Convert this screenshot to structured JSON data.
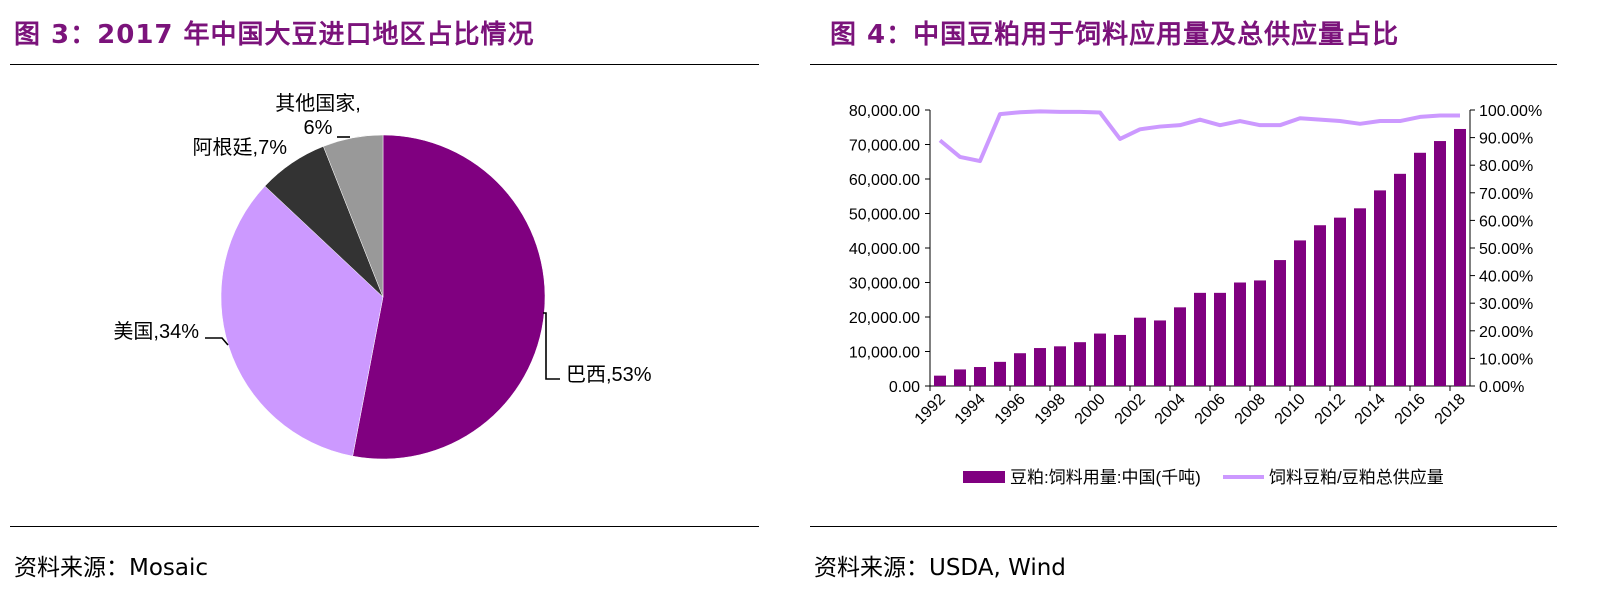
{
  "left": {
    "title": "图 3：2017 年中国大豆进口地区占比情况",
    "source": "资料来源：Mosaic"
  },
  "right": {
    "title": "图 4：中国豆粕用于饲料应用量及总供应量占比",
    "source": "资料来源：USDA, Wind"
  },
  "chart_data": [
    {
      "type": "pie",
      "title": "2017 年中国大豆进口地区占比情况",
      "slices": [
        {
          "label": "巴西,53%",
          "name": "巴西",
          "value": 53,
          "color": "#800080"
        },
        {
          "label": "美国,34%",
          "name": "美国",
          "value": 34,
          "color": "#cc99ff"
        },
        {
          "label": "阿根廷,7%",
          "name": "阿根廷",
          "value": 7,
          "color": "#333333"
        },
        {
          "label_lines": [
            "其他国家,",
            "6%"
          ],
          "name": "其他国家",
          "value": 6,
          "color": "#999999"
        }
      ]
    },
    {
      "type": "bar",
      "title": "中国豆粕用于饲料应用量及总供应量占比",
      "categories": [
        "1992",
        "1993",
        "1994",
        "1995",
        "1996",
        "1997",
        "1998",
        "1999",
        "2000",
        "2001",
        "2002",
        "2003",
        "2004",
        "2005",
        "2006",
        "2007",
        "2008",
        "2009",
        "2010",
        "2011",
        "2012",
        "2013",
        "2014",
        "2015",
        "2016",
        "2017",
        "2018"
      ],
      "x_tick_labels": [
        "1992",
        "1994",
        "1996",
        "1998",
        "2000",
        "2002",
        "2004",
        "2006",
        "2008",
        "2010",
        "2012",
        "2014",
        "2016",
        "2018"
      ],
      "y_left": {
        "min": 0,
        "max": 80000,
        "step": 10000,
        "ticks": [
          "0.00",
          "10,000.00",
          "20,000.00",
          "30,000.00",
          "40,000.00",
          "50,000.00",
          "60,000.00",
          "70,000.00",
          "80,000.00"
        ]
      },
      "y_right": {
        "min": 0,
        "max": 100,
        "step": 10,
        "ticks": [
          "0.00%",
          "10.00%",
          "20.00%",
          "30.00%",
          "40.00%",
          "50.00%",
          "60.00%",
          "70.00%",
          "80.00%",
          "90.00%",
          "100.00%"
        ]
      },
      "series": [
        {
          "name": "豆粕:饲料用量:中国(千吨)",
          "kind": "bar",
          "axis": "left",
          "color": "#800080",
          "values": [
            3000,
            4800,
            5500,
            7000,
            9500,
            11000,
            11500,
            12700,
            15200,
            14800,
            19800,
            19000,
            22800,
            27000,
            27000,
            30000,
            30600,
            36500,
            42200,
            46600,
            48800,
            51500,
            56700,
            61500,
            67600,
            71000,
            74500
          ]
        },
        {
          "name": "饲料豆粕/豆粕总供应量",
          "kind": "line",
          "axis": "right",
          "color": "#cc99ff",
          "values": [
            89,
            83,
            81.5,
            98.5,
            99.2,
            99.5,
            99.3,
            99.3,
            99.1,
            89.5,
            93,
            94,
            94.5,
            96.5,
            94.5,
            96,
            94.5,
            94.5,
            97,
            96.5,
            96,
            95,
            96,
            96,
            97.5,
            98,
            98
          ]
        }
      ]
    }
  ]
}
